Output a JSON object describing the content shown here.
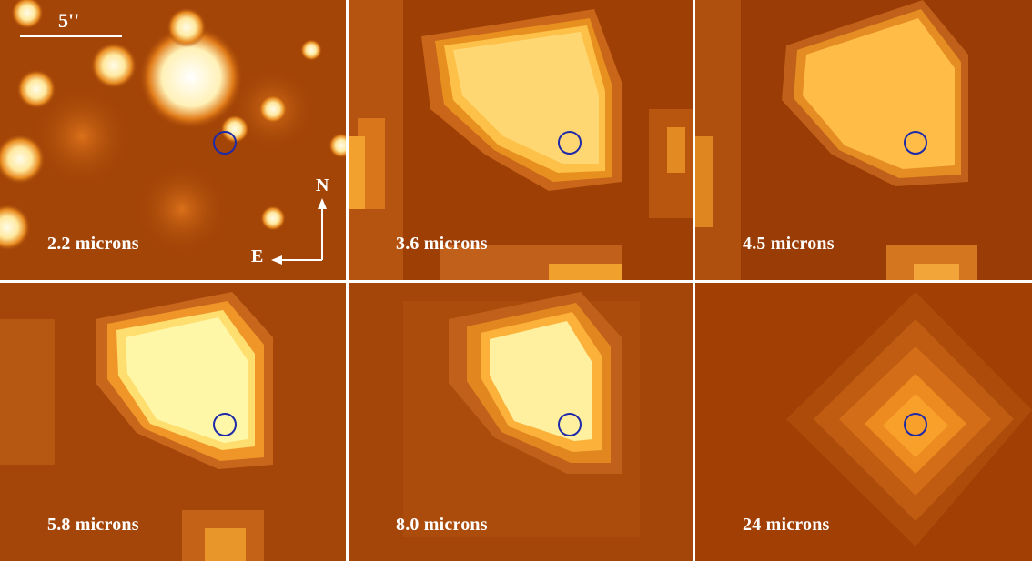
{
  "panels": [
    {
      "label": "2.2 microns"
    },
    {
      "label": "3.6 microns"
    },
    {
      "label": "4.5 microns"
    },
    {
      "label": "5.8 microns"
    },
    {
      "label": "8.0 microns"
    },
    {
      "label": "24 microns"
    }
  ],
  "scale_bar": {
    "label": "5''"
  },
  "compass": {
    "north": "N",
    "east": "E"
  },
  "colors": {
    "background": "#9c3f05",
    "bright": "#fff6a0",
    "marker": "#1e2aa8",
    "divider": "#ffffff"
  }
}
